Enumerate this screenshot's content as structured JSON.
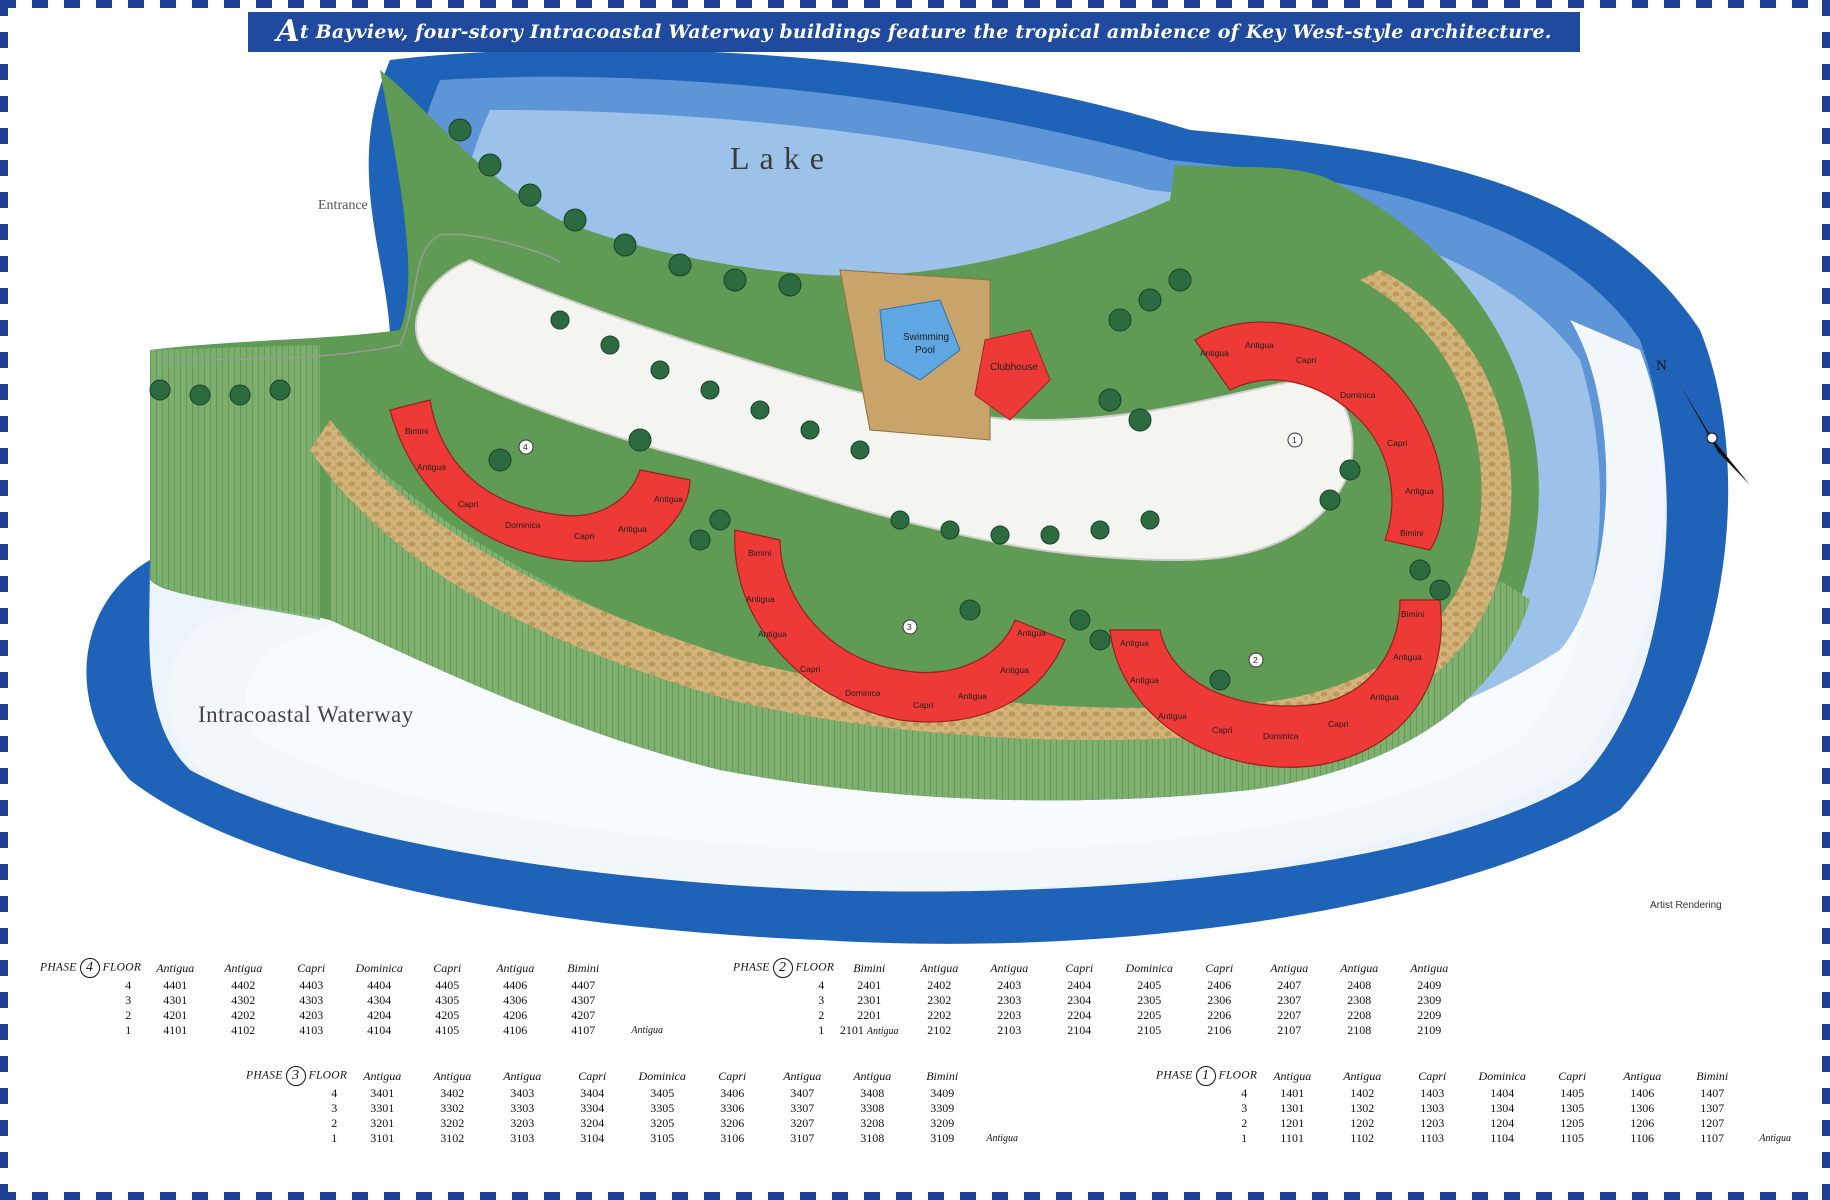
{
  "banner": {
    "initial": "A",
    "rest": "t Bayview, four-story Intracoastal Waterway buildings feature the tropical ambience of Key West-style architecture."
  },
  "map": {
    "lake_label": "Lake",
    "entrance_label": "Entrance",
    "waterway_label": "Intracoastal Waterway",
    "artist_label": "Artist Rendering",
    "pool_label_1": "Swimming",
    "pool_label_2": "Pool",
    "clubhouse_label": "Clubhouse",
    "north_label": "N",
    "colors": {
      "water": "#1e63b8",
      "water_light": "#8fbbe6",
      "lawn": "#5f9b55",
      "building": "#ee3a36",
      "path": "#c7a56a",
      "tree": "#2c6b3f"
    },
    "building_4": {
      "number": "4",
      "units": [
        "Bimini",
        "Antigua",
        "Capri",
        "Dominica",
        "Capri",
        "Antigua",
        "Antigua"
      ]
    },
    "building_3": {
      "number": "3",
      "units": [
        "Bimini",
        "Antigua",
        "Antigua",
        "Capri",
        "Dominica",
        "Capri",
        "Antigua",
        "Antigua",
        "Antigua"
      ]
    },
    "building_2": {
      "number": "2",
      "units": [
        "Antigua",
        "Antigua",
        "Antigua",
        "Capri",
        "Dominica",
        "Capri",
        "Antigua",
        "Antigua",
        "Bimini"
      ]
    },
    "building_1": {
      "number": "1",
      "units": [
        "Antigua",
        "Antigua",
        "Capri",
        "Dominica",
        "Capri",
        "Antigua",
        "Bimini"
      ]
    }
  },
  "tables": {
    "phase_word": "PHASE",
    "floor_word": "FLOOR",
    "phase4": {
      "number": "4",
      "headers": [
        "Antigua",
        "Antigua",
        "Capri",
        "Dominica",
        "Capri",
        "Antigua",
        "Bimini"
      ],
      "rows": [
        {
          "floor": "4",
          "units": [
            "4401",
            "4402",
            "4403",
            "4404",
            "4405",
            "4406",
            "4407"
          ],
          "note": ""
        },
        {
          "floor": "3",
          "units": [
            "4301",
            "4302",
            "4303",
            "4304",
            "4305",
            "4306",
            "4307"
          ],
          "note": ""
        },
        {
          "floor": "2",
          "units": [
            "4201",
            "4202",
            "4203",
            "4204",
            "4205",
            "4206",
            "4207"
          ],
          "note": ""
        },
        {
          "floor": "1",
          "units": [
            "4101",
            "4102",
            "4103",
            "4104",
            "4105",
            "4106",
            "4107"
          ],
          "note": "Antigua"
        }
      ]
    },
    "phase2": {
      "number": "2",
      "headers": [
        "Bimini",
        "Antigua",
        "Antigua",
        "Capri",
        "Dominica",
        "Capri",
        "Antigua",
        "Antigua",
        "Antigua"
      ],
      "rows": [
        {
          "floor": "4",
          "units": [
            "2401",
            "2402",
            "2403",
            "2404",
            "2405",
            "2406",
            "2407",
            "2408",
            "2409"
          ],
          "note": ""
        },
        {
          "floor": "3",
          "units": [
            "2301",
            "2302",
            "2303",
            "2304",
            "2305",
            "2306",
            "2307",
            "2308",
            "2309"
          ],
          "note": ""
        },
        {
          "floor": "2",
          "units": [
            "2201",
            "2202",
            "2203",
            "2204",
            "2205",
            "2206",
            "2207",
            "2208",
            "2209"
          ],
          "note": ""
        },
        {
          "floor": "1",
          "units": [
            "2101",
            "2102",
            "2103",
            "2104",
            "2105",
            "2106",
            "2107",
            "2108",
            "2109"
          ],
          "note": "Antigua"
        }
      ]
    },
    "phase3": {
      "number": "3",
      "headers": [
        "Antigua",
        "Antigua",
        "Antigua",
        "Capri",
        "Dominica",
        "Capri",
        "Antigua",
        "Antigua",
        "Bimini"
      ],
      "rows": [
        {
          "floor": "4",
          "units": [
            "3401",
            "3402",
            "3403",
            "3404",
            "3405",
            "3406",
            "3407",
            "3408",
            "3409"
          ],
          "note": ""
        },
        {
          "floor": "3",
          "units": [
            "3301",
            "3302",
            "3303",
            "3304",
            "3305",
            "3306",
            "3307",
            "3308",
            "3309"
          ],
          "note": ""
        },
        {
          "floor": "2",
          "units": [
            "3201",
            "3202",
            "3203",
            "3204",
            "3205",
            "3206",
            "3207",
            "3208",
            "3209"
          ],
          "note": ""
        },
        {
          "floor": "1",
          "units": [
            "3101",
            "3102",
            "3103",
            "3104",
            "3105",
            "3106",
            "3107",
            "3108",
            "3109"
          ],
          "note": "Antigua"
        }
      ]
    },
    "phase1": {
      "number": "1",
      "headers": [
        "Antigua",
        "Antigua",
        "Capri",
        "Dominica",
        "Capri",
        "Antigua",
        "Bimini"
      ],
      "rows": [
        {
          "floor": "4",
          "units": [
            "1401",
            "1402",
            "1403",
            "1404",
            "1405",
            "1406",
            "1407"
          ],
          "note": ""
        },
        {
          "floor": "3",
          "units": [
            "1301",
            "1302",
            "1303",
            "1304",
            "1305",
            "1306",
            "1307"
          ],
          "note": ""
        },
        {
          "floor": "2",
          "units": [
            "1201",
            "1202",
            "1203",
            "1204",
            "1205",
            "1206",
            "1207"
          ],
          "note": ""
        },
        {
          "floor": "1",
          "units": [
            "1101",
            "1102",
            "1103",
            "1104",
            "1105",
            "1106",
            "1107"
          ],
          "note": "Antigua"
        }
      ]
    }
  }
}
